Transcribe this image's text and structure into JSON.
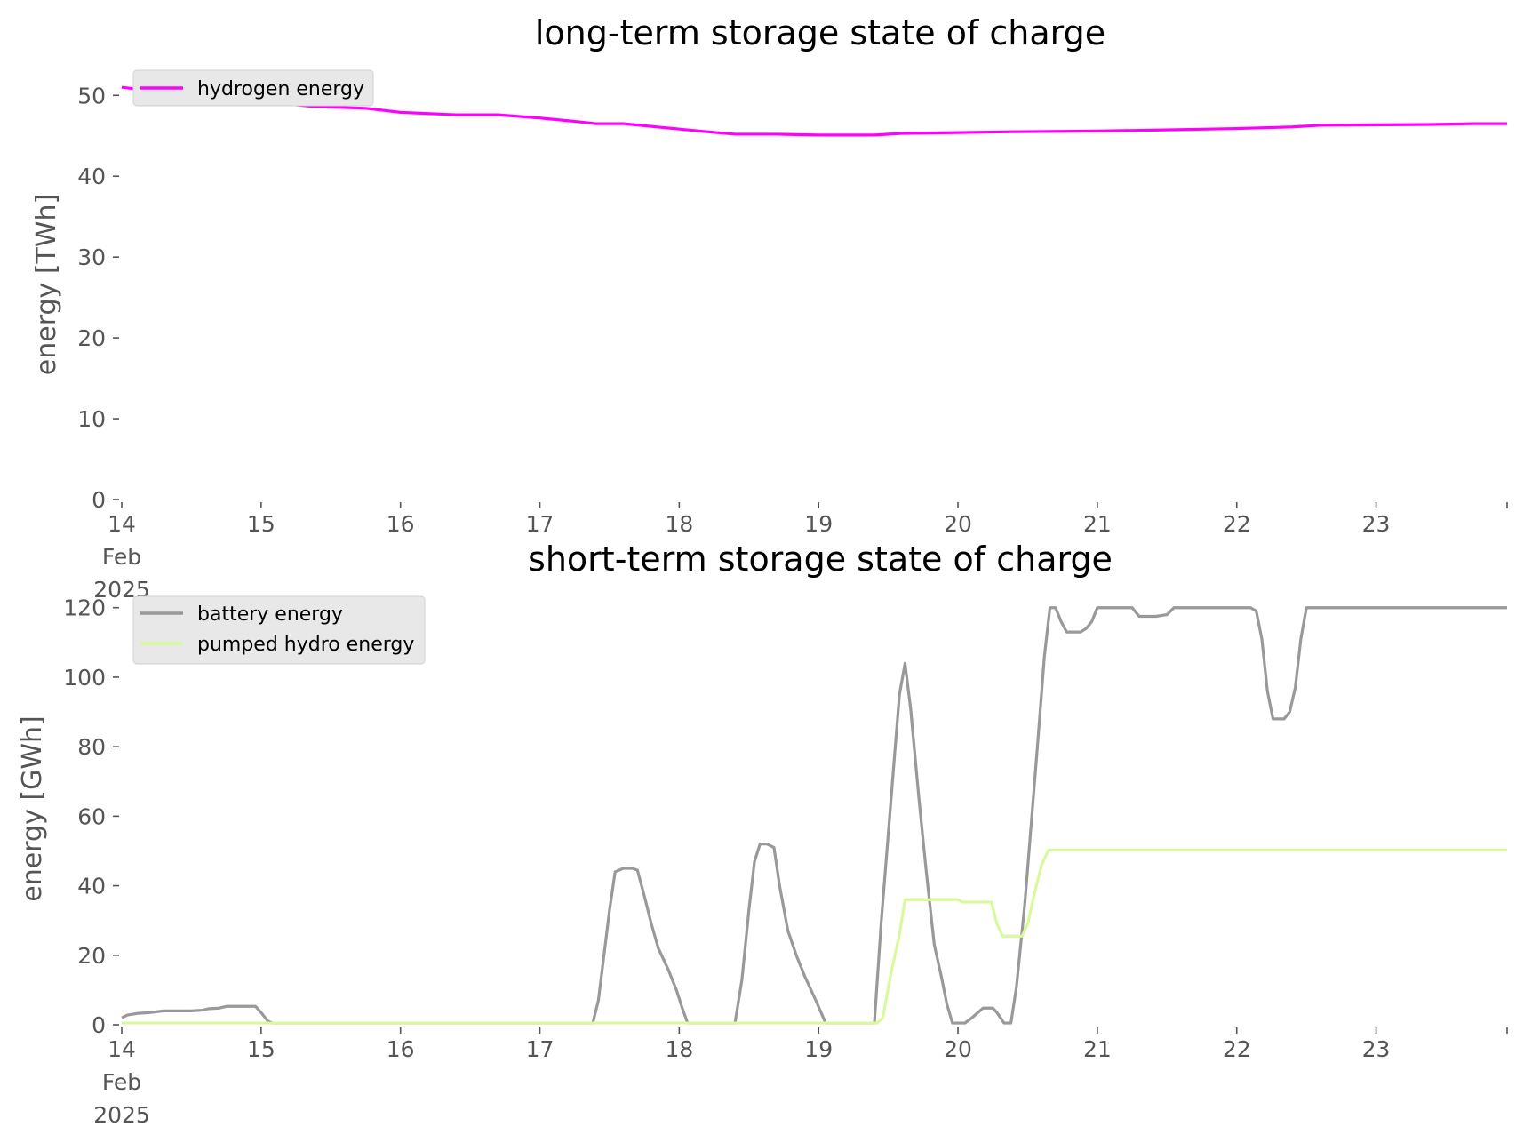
{
  "chart_data": [
    {
      "type": "line",
      "title": "long-term storage state of charge",
      "ylabel": "energy [TWh]",
      "xlabel": "",
      "xlim": [
        0,
        9.94
      ],
      "x_unit": "days since 14 Feb 2025",
      "ylim": [
        0,
        53
      ],
      "yticks": [
        0,
        10,
        20,
        30,
        40,
        50
      ],
      "xticks": [
        {
          "pos": 0,
          "lines": [
            "14",
            "Feb",
            "2025"
          ]
        },
        {
          "pos": 1,
          "lines": [
            "15"
          ]
        },
        {
          "pos": 2,
          "lines": [
            "16"
          ]
        },
        {
          "pos": 3,
          "lines": [
            "17"
          ]
        },
        {
          "pos": 4,
          "lines": [
            "18"
          ]
        },
        {
          "pos": 5,
          "lines": [
            "19"
          ]
        },
        {
          "pos": 6,
          "lines": [
            "20"
          ]
        },
        {
          "pos": 7,
          "lines": [
            "21"
          ]
        },
        {
          "pos": 8,
          "lines": [
            "22"
          ]
        },
        {
          "pos": 9,
          "lines": [
            "23"
          ]
        },
        {
          "pos": 9.94,
          "lines": [
            ""
          ]
        }
      ],
      "legend_position": "upper-left",
      "grid": false,
      "series": [
        {
          "name": "hydrogen energy",
          "color": "#ff00ff",
          "points": [
            [
              0,
              51.0
            ],
            [
              0.5,
              50.0
            ],
            [
              1.0,
              49.2
            ],
            [
              1.4,
              48.6
            ],
            [
              1.75,
              48.4
            ],
            [
              2.0,
              47.9
            ],
            [
              2.4,
              47.6
            ],
            [
              2.7,
              47.6
            ],
            [
              3.0,
              47.2
            ],
            [
              3.3,
              46.7
            ],
            [
              3.4,
              46.5
            ],
            [
              3.6,
              46.5
            ],
            [
              3.9,
              46.0
            ],
            [
              4.2,
              45.5
            ],
            [
              4.4,
              45.2
            ],
            [
              4.7,
              45.2
            ],
            [
              5.0,
              45.1
            ],
            [
              5.4,
              45.1
            ],
            [
              5.6,
              45.3
            ],
            [
              6.0,
              45.4
            ],
            [
              6.4,
              45.5
            ],
            [
              7.0,
              45.6
            ],
            [
              7.4,
              45.7
            ],
            [
              8.0,
              45.9
            ],
            [
              8.4,
              46.1
            ],
            [
              8.6,
              46.3
            ],
            [
              9.4,
              46.4
            ],
            [
              9.7,
              46.5
            ],
            [
              9.94,
              46.5
            ]
          ]
        }
      ]
    },
    {
      "type": "line",
      "title": "short-term storage state of charge",
      "ylabel": "energy [GWh]",
      "xlabel": "",
      "xlim": [
        0,
        9.94
      ],
      "x_unit": "days since 14 Feb 2025",
      "ylim": [
        0,
        123
      ],
      "yticks": [
        0,
        20,
        40,
        60,
        80,
        100,
        120
      ],
      "xticks": [
        {
          "pos": 0,
          "lines": [
            "14",
            "Feb",
            "2025"
          ]
        },
        {
          "pos": 1,
          "lines": [
            "15"
          ]
        },
        {
          "pos": 2,
          "lines": [
            "16"
          ]
        },
        {
          "pos": 3,
          "lines": [
            "17"
          ]
        },
        {
          "pos": 4,
          "lines": [
            "18"
          ]
        },
        {
          "pos": 5,
          "lines": [
            "19"
          ]
        },
        {
          "pos": 6,
          "lines": [
            "20"
          ]
        },
        {
          "pos": 7,
          "lines": [
            "21"
          ]
        },
        {
          "pos": 8,
          "lines": [
            "22"
          ]
        },
        {
          "pos": 9,
          "lines": [
            "23"
          ]
        },
        {
          "pos": 9.94,
          "lines": [
            ""
          ]
        }
      ],
      "legend_position": "upper-left",
      "grid": false,
      "series": [
        {
          "name": "battery energy",
          "color": "#999999",
          "points": [
            [
              0,
              2
            ],
            [
              0.04,
              2.8
            ],
            [
              0.12,
              3.3
            ],
            [
              0.2,
              3.5
            ],
            [
              0.3,
              4.0
            ],
            [
              0.4,
              4.0
            ],
            [
              0.5,
              4.0
            ],
            [
              0.58,
              4.2
            ],
            [
              0.62,
              4.6
            ],
            [
              0.7,
              4.8
            ],
            [
              0.75,
              5.3
            ],
            [
              0.9,
              5.3
            ],
            [
              0.96,
              5.3
            ],
            [
              1.0,
              3.5
            ],
            [
              1.05,
              1.0
            ],
            [
              1.08,
              0.5
            ],
            [
              1.3,
              0.5
            ],
            [
              2.0,
              0.5
            ],
            [
              3.0,
              0.5
            ],
            [
              3.38,
              0.5
            ],
            [
              3.42,
              7
            ],
            [
              3.5,
              33
            ],
            [
              3.54,
              44
            ],
            [
              3.6,
              45
            ],
            [
              3.66,
              45
            ],
            [
              3.7,
              44.5
            ],
            [
              3.75,
              37
            ],
            [
              3.8,
              29
            ],
            [
              3.85,
              22
            ],
            [
              3.92,
              16
            ],
            [
              3.98,
              10
            ],
            [
              4.02,
              5
            ],
            [
              4.06,
              0.5
            ],
            [
              4.4,
              0.5
            ],
            [
              4.45,
              13
            ],
            [
              4.5,
              33
            ],
            [
              4.54,
              47
            ],
            [
              4.58,
              52
            ],
            [
              4.63,
              52
            ],
            [
              4.68,
              51
            ],
            [
              4.72,
              40
            ],
            [
              4.78,
              27
            ],
            [
              4.84,
              20
            ],
            [
              4.9,
              14
            ],
            [
              4.98,
              7
            ],
            [
              5.05,
              0.5
            ],
            [
              5.4,
              0.5
            ],
            [
              5.45,
              30
            ],
            [
              5.52,
              65
            ],
            [
              5.58,
              95
            ],
            [
              5.62,
              104
            ],
            [
              5.66,
              91
            ],
            [
              5.72,
              65
            ],
            [
              5.77,
              45
            ],
            [
              5.83,
              23
            ],
            [
              5.88,
              14
            ],
            [
              5.92,
              6
            ],
            [
              5.96,
              0.5
            ],
            [
              6.05,
              0.5
            ],
            [
              6.1,
              2
            ],
            [
              6.18,
              4.8
            ],
            [
              6.25,
              4.8
            ],
            [
              6.28,
              3.5
            ],
            [
              6.33,
              0.5
            ],
            [
              6.38,
              0.5
            ],
            [
              6.42,
              11
            ],
            [
              6.48,
              35
            ],
            [
              6.52,
              55
            ],
            [
              6.57,
              80
            ],
            [
              6.62,
              106
            ],
            [
              6.66,
              120
            ],
            [
              6.7,
              120
            ],
            [
              6.74,
              116
            ],
            [
              6.78,
              113
            ],
            [
              6.88,
              113
            ],
            [
              6.92,
              114
            ],
            [
              6.96,
              116
            ],
            [
              7.0,
              120
            ],
            [
              7.25,
              120
            ],
            [
              7.3,
              117.5
            ],
            [
              7.42,
              117.5
            ],
            [
              7.5,
              118
            ],
            [
              7.55,
              120
            ],
            [
              8.1,
              120
            ],
            [
              8.14,
              119
            ],
            [
              8.18,
              111
            ],
            [
              8.22,
              96
            ],
            [
              8.26,
              88
            ],
            [
              8.34,
              88
            ],
            [
              8.38,
              90
            ],
            [
              8.42,
              97
            ],
            [
              8.46,
              111
            ],
            [
              8.5,
              120
            ],
            [
              9.95,
              120
            ]
          ]
        },
        {
          "name": "pumped hydro energy",
          "color": "#d9f99d",
          "points": [
            [
              0,
              0.5
            ],
            [
              4.0,
              0.5
            ],
            [
              5.0,
              0.5
            ],
            [
              5.42,
              0.5
            ],
            [
              5.46,
              2
            ],
            [
              5.52,
              15
            ],
            [
              5.58,
              26
            ],
            [
              5.62,
              36
            ],
            [
              5.9,
              36
            ],
            [
              6.0,
              36
            ],
            [
              6.03,
              35.3
            ],
            [
              6.2,
              35.3
            ],
            [
              6.24,
              35.3
            ],
            [
              6.28,
              29
            ],
            [
              6.32,
              25.5
            ],
            [
              6.46,
              25.5
            ],
            [
              6.5,
              29
            ],
            [
              6.55,
              38
            ],
            [
              6.6,
              46
            ],
            [
              6.65,
              50.3
            ],
            [
              9.94,
              50.3
            ]
          ]
        }
      ]
    }
  ]
}
